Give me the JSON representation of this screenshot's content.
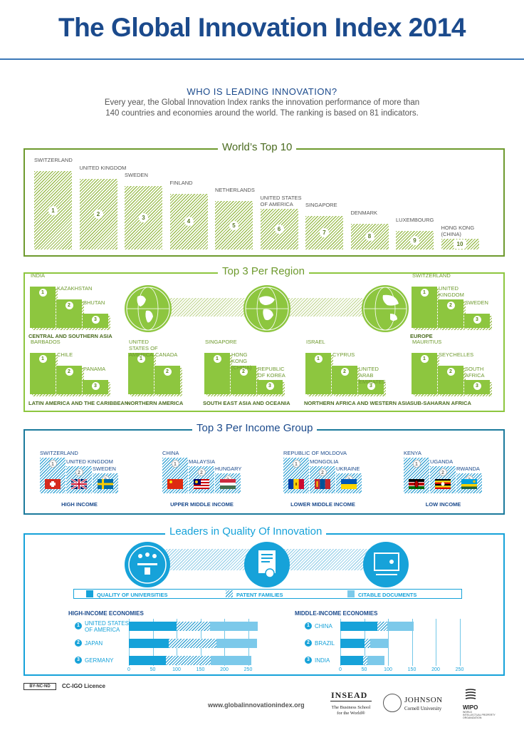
{
  "title": "The Global Innovation Index 2014",
  "intro": {
    "heading": "WHO IS LEADING INNOVATION?",
    "line1": "Every year, the Global Innovation Index ranks the innovation performance of more than",
    "line2": "140 countries and economies around the world. The ranking is based on 81 indicators."
  },
  "top10": {
    "title": "World’s Top 10",
    "items": [
      {
        "rank": "1",
        "name": "SWITZERLAND"
      },
      {
        "rank": "2",
        "name": "UNITED KINGDOM"
      },
      {
        "rank": "3",
        "name": "SWEDEN"
      },
      {
        "rank": "4",
        "name": "FINLAND"
      },
      {
        "rank": "5",
        "name": "NETHERLANDS"
      },
      {
        "rank": "6",
        "name": "UNITED STATES OF AMERICA"
      },
      {
        "rank": "7",
        "name": "SINGAPORE"
      },
      {
        "rank": "8",
        "name": "DENMARK"
      },
      {
        "rank": "9",
        "name": "LUXEMBOURG"
      },
      {
        "rank": "10",
        "name": "HONG KONG (CHINA)"
      }
    ]
  },
  "regions": {
    "title": "Top 3 Per Region",
    "groups": [
      {
        "label": "CENTRAL AND SOUTHERN ASIA",
        "countries": [
          "INDIA",
          "KAZAKHSTAN",
          "BHUTAN"
        ]
      },
      {
        "label": "EUROPE",
        "countries": [
          "SWITZERLAND",
          "UNITED KINGDOM",
          "SWEDEN"
        ]
      },
      {
        "label": "LATIN AMERICA AND THE CARIBBEAN",
        "countries": [
          "BARBADOS",
          "CHILE",
          "PANAMA"
        ]
      },
      {
        "label": "NORTHERN AMERICA",
        "countries": [
          "UNITED STATES OF AMERICA",
          "CANADA"
        ]
      },
      {
        "label": "SOUTH EAST ASIA AND OCEANIA",
        "countries": [
          "SINGAPORE",
          "HONG KONG (CHINA)",
          "REPUBLIC OF KOREA"
        ]
      },
      {
        "label": "NORTHERN AFRICA AND WESTERN ASIA",
        "countries": [
          "ISRAEL",
          "CYPRUS",
          "UNITED ARAB EMIRATES"
        ]
      },
      {
        "label": "SUB-SAHARAN AFRICA",
        "countries": [
          "MAURITIUS",
          "SEYCHELLES",
          "SOUTH AFRICA"
        ]
      }
    ]
  },
  "income": {
    "title": "Top 3 Per Income Group",
    "groups": [
      {
        "label": "HIGH INCOME",
        "countries": [
          "SWITZERLAND",
          "UNITED KINGDOM",
          "SWEDEN"
        ]
      },
      {
        "label": "UPPER MIDDLE INCOME",
        "countries": [
          "CHINA",
          "MALAYSIA",
          "HUNGARY"
        ]
      },
      {
        "label": "LOWER MIDDLE INCOME",
        "countries": [
          "REPUBLIC OF MOLDOVA",
          "MONGOLIA",
          "UKRAINE"
        ]
      },
      {
        "label": "LOW INCOME",
        "countries": [
          "KENYA",
          "UGANDA",
          "RWANDA"
        ]
      }
    ]
  },
  "quality": {
    "title": "Leaders in Quality Of Innovation",
    "legend": [
      "QUALITY OF UNIVERSITIES",
      "PATENT FAMILIES",
      "CITABLE DOCUMENTS"
    ],
    "high": {
      "heading": "HIGH-INCOME ECONOMIES",
      "rows": [
        {
          "rank": "1",
          "name": "UNITED STATES OF AMERICA",
          "universities": 100,
          "patents": 70,
          "citable": 100
        },
        {
          "rank": "2",
          "name": "JAPAN",
          "universities": 83,
          "patents": 100,
          "citable": 85
        },
        {
          "rank": "3",
          "name": "GERMANY",
          "universities": 77,
          "patents": 95,
          "citable": 85
        }
      ],
      "ticks": [
        "0",
        "50",
        "100",
        "150",
        "200",
        "250"
      ]
    },
    "middle": {
      "heading": "MIDDLE-INCOME ECONOMIES",
      "rows": [
        {
          "rank": "1",
          "name": "CHINA",
          "universities": 78,
          "patents": 20,
          "citable": 55
        },
        {
          "rank": "2",
          "name": "BRAZIL",
          "universities": 50,
          "patents": 12,
          "citable": 40
        },
        {
          "rank": "3",
          "name": "INDIA",
          "universities": 48,
          "patents": 8,
          "citable": 36
        }
      ],
      "ticks": [
        "0",
        "50",
        "100",
        "150",
        "200",
        "250"
      ]
    }
  },
  "footer": {
    "licence_badge": "BY-NC-ND",
    "licence": "CC-IGO Licence",
    "url": "www.globalinnovationindex.org",
    "insead_name": "INSEAD",
    "insead_tag1": "The Business School",
    "insead_tag2": "for the World®",
    "johnson1": "JOHNSON",
    "johnson2": "Cornell University",
    "wipo": "WIPO",
    "wipo_sub1": "WORLD",
    "wipo_sub2": "INTELLECTUAL PROPERTY",
    "wipo_sub3": "ORGANIZATION"
  },
  "colors": {
    "green": "#8dc63f",
    "blue": "#16a2d9",
    "navy": "#1b4a8c"
  }
}
